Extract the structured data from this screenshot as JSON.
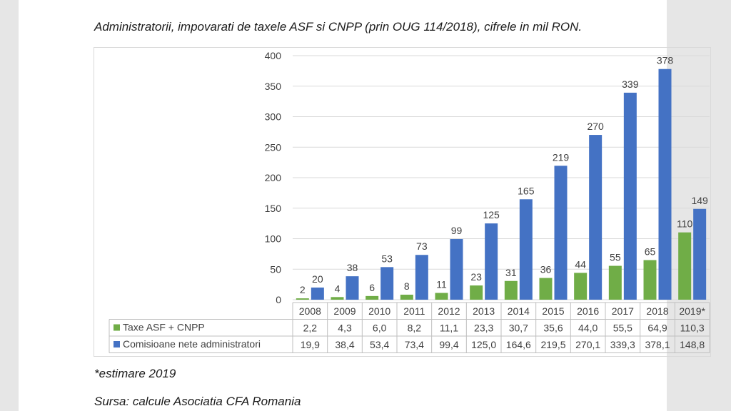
{
  "title": "Administratorii, impovarati de taxele ASF si CNPP (prin OUG 114/2018), cifrele in mil RON.",
  "footnote": "*estimare 2019",
  "source": "Sursa: calcule Asociatia CFA Romania",
  "colors": {
    "green": "#70ad47",
    "blue": "#4472c4",
    "grid": "#d9d9d9",
    "text": "#404040"
  },
  "chart_data": {
    "type": "bar",
    "categories": [
      "2008",
      "2009",
      "2010",
      "2011",
      "2012",
      "2013",
      "2014",
      "2015",
      "2016",
      "2017",
      "2018",
      "2019*"
    ],
    "ylim": [
      0,
      400
    ],
    "yticks": [
      0,
      50,
      100,
      150,
      200,
      250,
      300,
      350,
      400
    ],
    "grid": true,
    "legend": "in data table rows",
    "series": [
      {
        "name": "Taxe ASF + CNPP",
        "color": "#70ad47",
        "values": [
          2.2,
          4.3,
          6.0,
          8.2,
          11.1,
          23.3,
          30.7,
          35.6,
          44.0,
          55.5,
          64.9,
          110.3
        ],
        "bar_labels": [
          "2",
          "4",
          "6",
          "8",
          "11",
          "23",
          "31",
          "36",
          "44",
          "55",
          "65",
          "110"
        ],
        "table_labels": [
          "2,2",
          "4,3",
          "6,0",
          "8,2",
          "11,1",
          "23,3",
          "30,7",
          "35,6",
          "44,0",
          "55,5",
          "64,9",
          "110,3"
        ]
      },
      {
        "name": "Comisioane nete administratori",
        "color": "#4472c4",
        "values": [
          19.9,
          38.4,
          53.4,
          73.4,
          99.4,
          125.0,
          164.6,
          219.5,
          270.1,
          339.3,
          378.1,
          148.8
        ],
        "bar_labels": [
          "20",
          "38",
          "53",
          "73",
          "99",
          "125",
          "165",
          "219",
          "270",
          "339",
          "378",
          "149"
        ],
        "table_labels": [
          "19,9",
          "38,4",
          "53,4",
          "73,4",
          "99,4",
          "125,0",
          "164,6",
          "219,5",
          "270,1",
          "339,3",
          "378,1",
          "148,8"
        ]
      }
    ]
  }
}
